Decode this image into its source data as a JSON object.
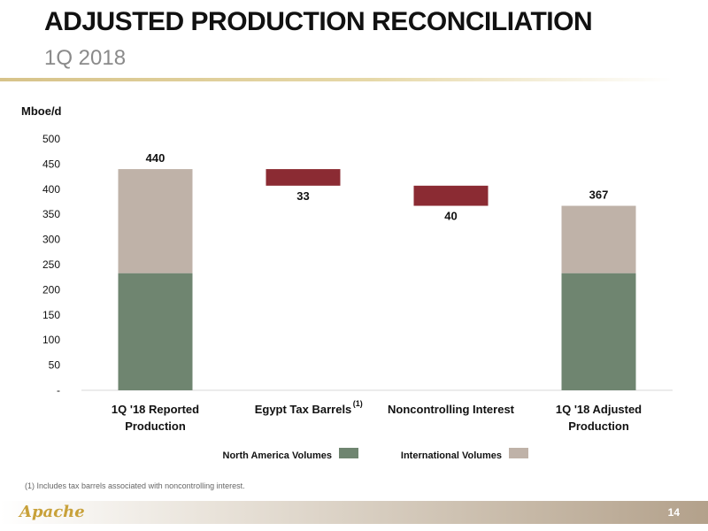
{
  "header": {
    "title": "ADJUSTED PRODUCTION RECONCILIATION",
    "subtitle": "1Q 2018"
  },
  "footnote": "(1)  Includes tax barrels associated with noncontrolling interest.",
  "logo_text": "Apache",
  "page_number": "14",
  "colors": {
    "north_america": "#6f8570",
    "international": "#bfb2a8",
    "reduction": "#8b2b33",
    "accent_rule": "#d7c38a"
  },
  "chart_data": {
    "type": "bar",
    "subtype": "waterfall",
    "ylabel": "Mboe/d",
    "ylim": [
      0,
      500
    ],
    "yticks": [
      "-",
      "50",
      "100",
      "150",
      "200",
      "250",
      "300",
      "350",
      "400",
      "450",
      "500"
    ],
    "categories": [
      {
        "line1": "1Q '18 Reported",
        "line2": "Production",
        "sup": ""
      },
      {
        "line1": "Egypt Tax Barrels",
        "line2": "",
        "sup": "(1)"
      },
      {
        "line1": "Noncontrolling Interest",
        "line2": "",
        "sup": ""
      },
      {
        "line1": "1Q '18 Adjusted",
        "line2": "Production",
        "sup": ""
      }
    ],
    "series": [
      {
        "name": "North America Volumes",
        "values": [
          233,
          null,
          null,
          233
        ]
      },
      {
        "name": "International Volumes",
        "values": [
          207,
          null,
          null,
          134
        ]
      }
    ],
    "reductions": [
      {
        "category_index": 1,
        "from": 440,
        "to": 407,
        "label": "33"
      },
      {
        "category_index": 2,
        "from": 407,
        "to": 367,
        "label": "40"
      }
    ],
    "totals": [
      {
        "category_index": 0,
        "label": "440"
      },
      {
        "category_index": 3,
        "label": "367"
      }
    ],
    "legend": {
      "placement": "bottom",
      "items": [
        "North America Volumes",
        "International Volumes"
      ]
    },
    "grid": false
  }
}
